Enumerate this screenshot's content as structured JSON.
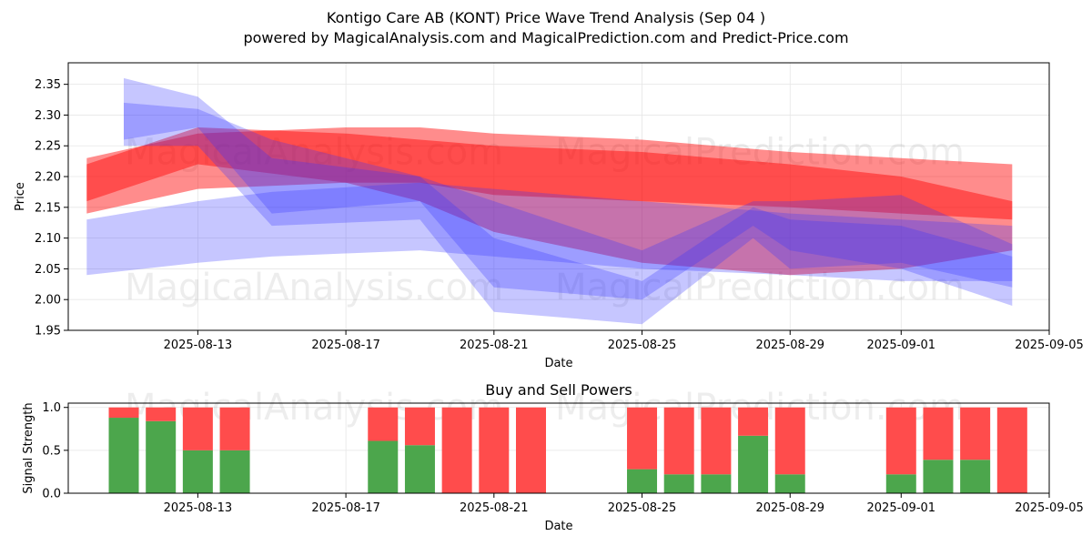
{
  "title_line1": "Kontigo Care AB (KONT) Price Wave Trend Analysis (Sep 04 )",
  "title_line2": "powered by MagicalAnalysis.com and MagicalPrediction.com and Predict-Price.com",
  "watermarks": [
    "MagicalAnalysis.com",
    "MagicalPrediction.com"
  ],
  "colors": {
    "buy": "#4ca64c",
    "sell": "#ff4c4c",
    "wave_blue": "#3333ff",
    "wave_red": "#ff0000"
  },
  "chart_data": [
    {
      "type": "area",
      "title": "",
      "xlabel": "Date",
      "ylabel": "Price",
      "xlim": [
        "2025-08-09T12:00",
        "2025-09-05T00:00"
      ],
      "ylim": [
        1.95,
        2.385
      ],
      "x_ticks": [
        "2025-08-13",
        "2025-08-17",
        "2025-08-21",
        "2025-08-25",
        "2025-08-29",
        "2025-09-01",
        "2025-09-05"
      ],
      "y_ticks": [
        1.95,
        2.0,
        2.05,
        2.1,
        2.15,
        2.2,
        2.25,
        2.3,
        2.35
      ],
      "grid": true,
      "series": [
        {
          "color": "red",
          "x": [
            "2025-08-10",
            "2025-08-13",
            "2025-08-17",
            "2025-08-19",
            "2025-08-21",
            "2025-08-25",
            "2025-08-29",
            "2025-09-01",
            "2025-09-04"
          ],
          "upper": [
            2.23,
            2.27,
            2.28,
            2.28,
            2.27,
            2.26,
            2.24,
            2.23,
            2.22
          ],
          "lower": [
            2.14,
            2.18,
            2.19,
            2.19,
            2.17,
            2.16,
            2.15,
            2.14,
            2.13
          ]
        },
        {
          "color": "red",
          "x": [
            "2025-08-10",
            "2025-08-13",
            "2025-08-17",
            "2025-08-19",
            "2025-08-21",
            "2025-08-25",
            "2025-08-29",
            "2025-09-01",
            "2025-09-04"
          ],
          "upper": [
            2.22,
            2.28,
            2.27,
            2.26,
            2.25,
            2.24,
            2.22,
            2.2,
            2.16
          ],
          "lower": [
            2.16,
            2.22,
            2.19,
            2.16,
            2.11,
            2.06,
            2.04,
            2.05,
            2.08
          ]
        },
        {
          "color": "blue",
          "x": [
            "2025-08-10",
            "2025-08-13",
            "2025-08-15",
            "2025-08-19",
            "2025-08-21",
            "2025-08-25",
            "2025-08-29",
            "2025-09-01",
            "2025-09-04"
          ],
          "upper": [
            2.13,
            2.16,
            2.175,
            2.19,
            2.18,
            2.16,
            2.14,
            2.13,
            2.12
          ],
          "lower": [
            2.04,
            2.06,
            2.07,
            2.08,
            2.07,
            2.05,
            2.04,
            2.03,
            2.03
          ]
        },
        {
          "color": "blue",
          "x": [
            "2025-08-11",
            "2025-08-13",
            "2025-08-15",
            "2025-08-19",
            "2025-08-21",
            "2025-08-25",
            "2025-08-28",
            "2025-08-29",
            "2025-09-01",
            "2025-09-04"
          ],
          "upper": [
            2.36,
            2.33,
            2.23,
            2.2,
            2.1,
            2.03,
            2.15,
            2.13,
            2.12,
            2.07
          ],
          "lower": [
            2.25,
            2.25,
            2.12,
            2.13,
            1.98,
            1.96,
            2.1,
            2.05,
            2.06,
            2.02
          ]
        },
        {
          "color": "blue",
          "x": [
            "2025-08-11",
            "2025-08-13",
            "2025-08-15",
            "2025-08-19",
            "2025-08-21",
            "2025-08-25",
            "2025-08-28",
            "2025-08-29",
            "2025-09-01",
            "2025-09-04"
          ],
          "upper": [
            2.32,
            2.31,
            2.26,
            2.2,
            2.16,
            2.08,
            2.16,
            2.16,
            2.17,
            2.09
          ],
          "lower": [
            2.26,
            2.28,
            2.14,
            2.16,
            2.02,
            2.0,
            2.12,
            2.08,
            2.05,
            1.99
          ]
        }
      ]
    },
    {
      "type": "bar",
      "title": "Buy and Sell Powers",
      "xlabel": "Date",
      "ylabel": "Signal Strength",
      "xlim": [
        "2025-08-09T12:00",
        "2025-09-05T00:00"
      ],
      "ylim": [
        0,
        1.05
      ],
      "x_ticks": [
        "2025-08-13",
        "2025-08-17",
        "2025-08-21",
        "2025-08-25",
        "2025-08-29",
        "2025-09-01",
        "2025-09-05"
      ],
      "y_ticks": [
        0.0,
        0.5,
        1.0
      ],
      "grid": true,
      "categories": [
        "2025-08-11",
        "2025-08-12",
        "2025-08-13",
        "2025-08-14",
        "2025-08-18",
        "2025-08-19",
        "2025-08-20",
        "2025-08-21",
        "2025-08-22",
        "2025-08-25",
        "2025-08-26",
        "2025-08-27",
        "2025-08-28",
        "2025-08-29",
        "2025-09-01",
        "2025-09-02",
        "2025-09-03",
        "2025-09-04"
      ],
      "series": [
        {
          "name": "Buy",
          "values": [
            0.88,
            0.84,
            0.5,
            0.5,
            0.61,
            0.56,
            0.0,
            0.0,
            0.0,
            0.28,
            0.22,
            0.22,
            0.67,
            0.22,
            0.22,
            0.39,
            0.39,
            0.0
          ]
        },
        {
          "name": "Sell",
          "values": [
            0.12,
            0.16,
            0.5,
            0.5,
            0.39,
            0.44,
            1.0,
            1.0,
            1.0,
            0.72,
            0.78,
            0.78,
            0.33,
            0.78,
            0.78,
            0.61,
            0.61,
            1.0
          ]
        }
      ]
    }
  ]
}
